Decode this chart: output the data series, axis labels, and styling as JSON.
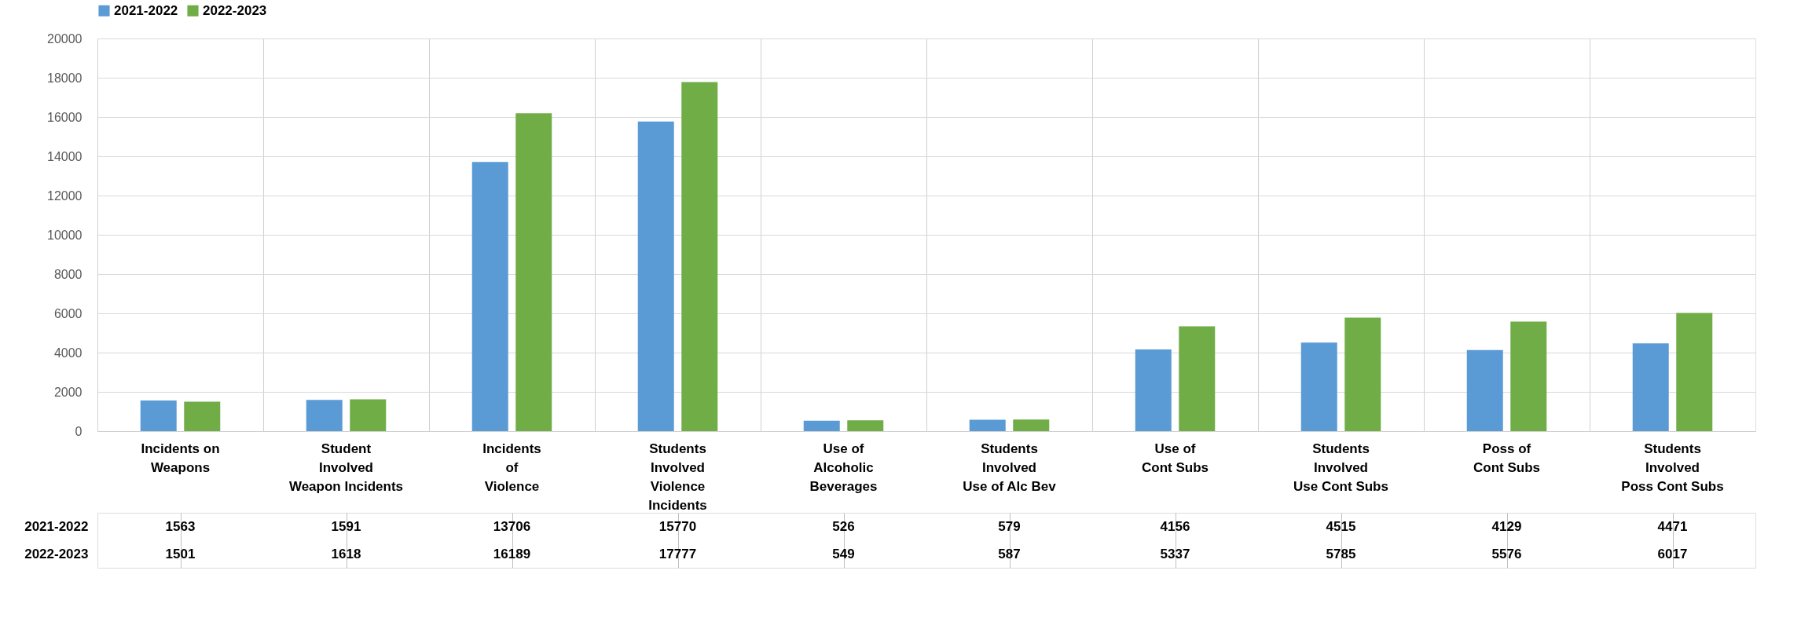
{
  "chart_data": {
    "type": "bar",
    "categories": [
      "Incidents on\nWeapons",
      "Student\nInvolved\nWeapon Incidents",
      "Incidents\nof\nViolence",
      "Students\nInvolved\nViolence\nIncidents",
      "Use of\nAlcoholic\nBeverages",
      "Students\nInvolved\nUse of Alc Bev",
      "Use of\nCont Subs",
      "Students\nInvolved\nUse Cont Subs",
      "Poss of\nCont Subs",
      "Students\nInvolved\nPoss Cont Subs"
    ],
    "series": [
      {
        "name": "2021-2022",
        "color": "#5b9bd5",
        "values": [
          1563,
          1591,
          13706,
          15770,
          526,
          579,
          4156,
          4515,
          4129,
          4471
        ]
      },
      {
        "name": "2022-2023",
        "color": "#70ad47",
        "values": [
          1501,
          1618,
          16189,
          17777,
          549,
          587,
          5337,
          5785,
          5576,
          6017
        ]
      }
    ],
    "ylim": [
      0,
      20000
    ],
    "yticks": [
      0,
      2000,
      4000,
      6000,
      8000,
      10000,
      12000,
      14000,
      16000,
      18000,
      20000
    ],
    "grid": true,
    "legend": "top",
    "data_labels": true
  }
}
